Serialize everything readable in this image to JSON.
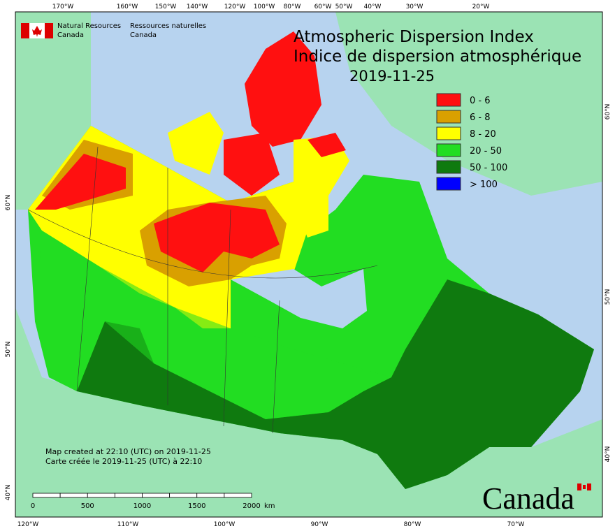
{
  "header": {
    "org_en": [
      "Natural Resources",
      "Canada"
    ],
    "org_fr": [
      "Ressources naturelles",
      "Canada"
    ]
  },
  "title": [
    "Atmospheric Dispersion Index",
    "Indice de dispersion atmosphérique"
  ],
  "date": "2019-11-25",
  "legend": [
    {
      "label": "0 - 6",
      "color": "#ff1010"
    },
    {
      "label": "6 - 8",
      "color": "#d9a000"
    },
    {
      "label": "8 - 20",
      "color": "#ffff00"
    },
    {
      "label": "20 - 50",
      "color": "#22dd22"
    },
    {
      "label": "50 - 100",
      "color": "#0f7a0f"
    },
    {
      "label": "> 100",
      "color": "#0000ff"
    }
  ],
  "graticule": {
    "top": [
      "170°W",
      "160°W",
      "150°W",
      "140°W",
      "120°W",
      "100°W",
      "80°W",
      "60°W",
      "50°W",
      "40°W",
      "30°W",
      "20°W"
    ],
    "bottom": [
      "120°W",
      "110°W",
      "100°W",
      "90°W",
      "80°W",
      "70°W"
    ],
    "left": [
      "60°N",
      "50°N",
      "40°N"
    ],
    "right": [
      "60°N",
      "50°N",
      "40°N"
    ]
  },
  "notes": [
    "Map created at 22:10 (UTC) on 2019-11-25",
    "Carte créée le 2019-11-25 (UTC) à 22:10"
  ],
  "scale": {
    "labels": [
      "0",
      "500",
      "1000",
      "1500",
      "2000"
    ],
    "unit": "km"
  },
  "wordmark": "Canada"
}
